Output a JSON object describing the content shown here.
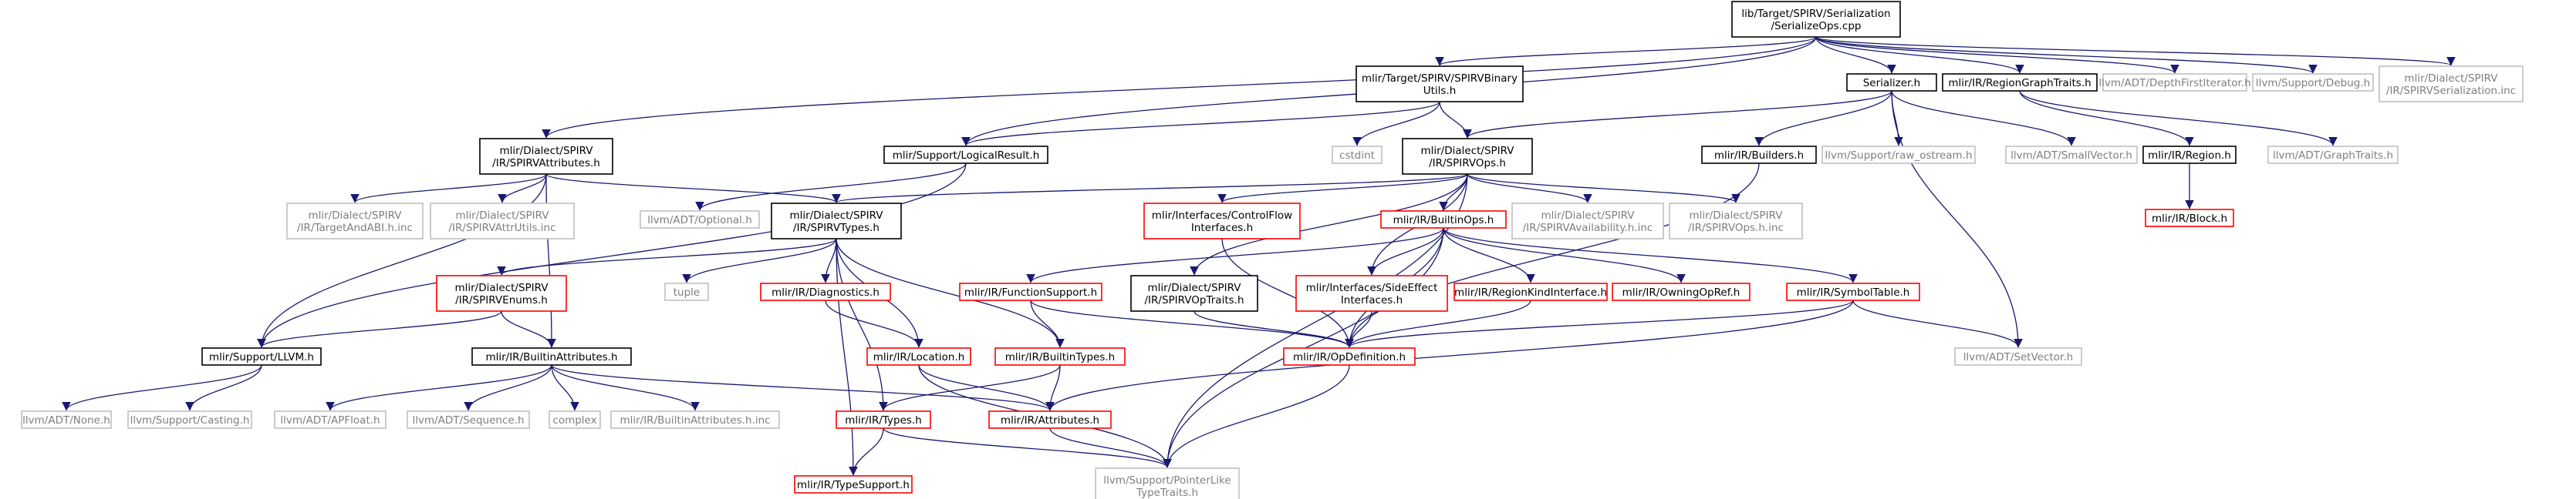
{
  "colors": {
    "root_fill": "#bfbfbf",
    "default_border": "#000000",
    "missing_border": "#bfbfbf",
    "missing_text": "#7f7f7f",
    "incomplete_border": "#ff0000",
    "edge": "#191970"
  },
  "nodes": [
    {
      "id": "root",
      "lines": [
        "lib/Target/SPIRV/Serialization",
        "/SerializeOps.cpp"
      ],
      "style": "root"
    },
    {
      "id": "binaryutils",
      "lines": [
        "mlir/Target/SPIRV/SPIRVBinary",
        "Utils.h"
      ],
      "style": "normal"
    },
    {
      "id": "serializer",
      "lines": [
        "Serializer.h"
      ],
      "style": "normal"
    },
    {
      "id": "regiongraphtraits",
      "lines": [
        "mlir/IR/RegionGraphTraits.h"
      ],
      "style": "normal"
    },
    {
      "id": "depthfirst",
      "lines": [
        "llvm/ADT/DepthFirstIterator.h"
      ],
      "style": "missing"
    },
    {
      "id": "debug",
      "lines": [
        "llvm/Support/Debug.h"
      ],
      "style": "missing"
    },
    {
      "id": "serialization_inc",
      "lines": [
        "mlir/Dialect/SPIRV",
        "/IR/SPIRVSerialization.inc"
      ],
      "style": "missing"
    },
    {
      "id": "attributes",
      "lines": [
        "mlir/Dialect/SPIRV",
        "/IR/SPIRVAttributes.h"
      ],
      "style": "normal"
    },
    {
      "id": "logicalresult",
      "lines": [
        "mlir/Support/LogicalResult.h"
      ],
      "style": "normal"
    },
    {
      "id": "cstdint",
      "lines": [
        "cstdint"
      ],
      "style": "missing"
    },
    {
      "id": "spirvops",
      "lines": [
        "mlir/Dialect/SPIRV",
        "/IR/SPIRVOps.h"
      ],
      "style": "normal"
    },
    {
      "id": "builders",
      "lines": [
        "mlir/IR/Builders.h"
      ],
      "style": "normal"
    },
    {
      "id": "raw_ostream",
      "lines": [
        "llvm/Support/raw_ostream.h"
      ],
      "style": "missing"
    },
    {
      "id": "smallvector",
      "lines": [
        "llvm/ADT/SmallVector.h"
      ],
      "style": "missing"
    },
    {
      "id": "region",
      "lines": [
        "mlir/IR/Region.h"
      ],
      "style": "normal"
    },
    {
      "id": "graphtraits",
      "lines": [
        "llvm/ADT/GraphTraits.h"
      ],
      "style": "missing"
    },
    {
      "id": "block",
      "lines": [
        "mlir/IR/Block.h"
      ],
      "style": "incomplete"
    },
    {
      "id": "targetandabi",
      "lines": [
        "mlir/Dialect/SPIRV",
        "/IR/TargetAndABI.h.inc"
      ],
      "style": "missing"
    },
    {
      "id": "attrutils",
      "lines": [
        "mlir/Dialect/SPIRV",
        "/IR/SPIRVAttrUtils.inc"
      ],
      "style": "missing"
    },
    {
      "id": "optional",
      "lines": [
        "llvm/ADT/Optional.h"
      ],
      "style": "missing"
    },
    {
      "id": "spirvtypes",
      "lines": [
        "mlir/Dialect/SPIRV",
        "/IR/SPIRVTypes.h"
      ],
      "style": "normal"
    },
    {
      "id": "controlflow",
      "lines": [
        "mlir/Interfaces/ControlFlow",
        "Interfaces.h"
      ],
      "style": "incomplete"
    },
    {
      "id": "builtinops",
      "lines": [
        "mlir/IR/BuiltinOps.h"
      ],
      "style": "incomplete"
    },
    {
      "id": "availability",
      "lines": [
        "mlir/Dialect/SPIRV",
        "/IR/SPIRVAvailability.h.inc"
      ],
      "style": "missing"
    },
    {
      "id": "spirvops_inc",
      "lines": [
        "mlir/Dialect/SPIRV",
        "/IR/SPIRVOps.h.inc"
      ],
      "style": "missing"
    },
    {
      "id": "spirvenums",
      "lines": [
        "mlir/Dialect/SPIRV",
        "/IR/SPIRVEnums.h"
      ],
      "style": "incomplete"
    },
    {
      "id": "tuple",
      "lines": [
        "tuple"
      ],
      "style": "missing"
    },
    {
      "id": "diagnostics",
      "lines": [
        "mlir/IR/Diagnostics.h"
      ],
      "style": "incomplete"
    },
    {
      "id": "functionsupport",
      "lines": [
        "mlir/IR/FunctionSupport.h"
      ],
      "style": "incomplete"
    },
    {
      "id": "spirvoptraits",
      "lines": [
        "mlir/Dialect/SPIRV",
        "/IR/SPIRVOpTraits.h"
      ],
      "style": "normal"
    },
    {
      "id": "sideeffect",
      "lines": [
        "mlir/Interfaces/SideEffect",
        "Interfaces.h"
      ],
      "style": "incomplete"
    },
    {
      "id": "regionkind",
      "lines": [
        "mlir/IR/RegionKindInterface.h"
      ],
      "style": "incomplete"
    },
    {
      "id": "owningopref",
      "lines": [
        "mlir/IR/OwningOpRef.h"
      ],
      "style": "incomplete"
    },
    {
      "id": "symboltable",
      "lines": [
        "mlir/IR/SymbolTable.h"
      ],
      "style": "incomplete"
    },
    {
      "id": "llvm",
      "lines": [
        "mlir/Support/LLVM.h"
      ],
      "style": "normal"
    },
    {
      "id": "builtinattributes",
      "lines": [
        "mlir/IR/BuiltinAttributes.h"
      ],
      "style": "normal"
    },
    {
      "id": "location",
      "lines": [
        "mlir/IR/Location.h"
      ],
      "style": "incomplete"
    },
    {
      "id": "builtintypes",
      "lines": [
        "mlir/IR/BuiltinTypes.h"
      ],
      "style": "incomplete"
    },
    {
      "id": "opdefinition",
      "lines": [
        "mlir/IR/OpDefinition.h"
      ],
      "style": "incomplete"
    },
    {
      "id": "setvector",
      "lines": [
        "llvm/ADT/SetVector.h"
      ],
      "style": "missing"
    },
    {
      "id": "none",
      "lines": [
        "llvm/ADT/None.h"
      ],
      "style": "missing"
    },
    {
      "id": "casting",
      "lines": [
        "llvm/Support/Casting.h"
      ],
      "style": "missing"
    },
    {
      "id": "apfloat",
      "lines": [
        "llvm/ADT/APFloat.h"
      ],
      "style": "missing"
    },
    {
      "id": "sequence",
      "lines": [
        "llvm/ADT/Sequence.h"
      ],
      "style": "missing"
    },
    {
      "id": "complex",
      "lines": [
        "complex"
      ],
      "style": "missing"
    },
    {
      "id": "builtinattributes_inc",
      "lines": [
        "mlir/IR/BuiltinAttributes.h.inc"
      ],
      "style": "missing"
    },
    {
      "id": "types",
      "lines": [
        "mlir/IR/Types.h"
      ],
      "style": "incomplete"
    },
    {
      "id": "irattributes",
      "lines": [
        "mlir/IR/Attributes.h"
      ],
      "style": "incomplete"
    },
    {
      "id": "typesupport",
      "lines": [
        "mlir/IR/TypeSupport.h"
      ],
      "style": "incomplete"
    },
    {
      "id": "pointerlike",
      "lines": [
        "llvm/Support/PointerLike",
        "TypeTraits.h"
      ],
      "style": "missing"
    }
  ],
  "edges": [
    [
      "root",
      "binaryutils"
    ],
    [
      "root",
      "serializer"
    ],
    [
      "root",
      "regiongraphtraits"
    ],
    [
      "root",
      "depthfirst"
    ],
    [
      "root",
      "debug"
    ],
    [
      "root",
      "serialization_inc"
    ],
    [
      "root",
      "attributes"
    ],
    [
      "root",
      "logicalresult"
    ],
    [
      "binaryutils",
      "logicalresult"
    ],
    [
      "binaryutils",
      "cstdint"
    ],
    [
      "binaryutils",
      "spirvops"
    ],
    [
      "serializer",
      "spirvops"
    ],
    [
      "serializer",
      "builders"
    ],
    [
      "serializer",
      "raw_ostream"
    ],
    [
      "serializer",
      "smallvector"
    ],
    [
      "serializer",
      "setvector"
    ],
    [
      "regiongraphtraits",
      "region"
    ],
    [
      "regiongraphtraits",
      "graphtraits"
    ],
    [
      "region",
      "block"
    ],
    [
      "attributes",
      "targetandabi"
    ],
    [
      "attributes",
      "attrutils"
    ],
    [
      "attributes",
      "spirvtypes"
    ],
    [
      "attributes",
      "builtinattributes"
    ],
    [
      "attributes",
      "llvm"
    ],
    [
      "logicalresult",
      "optional"
    ],
    [
      "logicalresult",
      "llvm"
    ],
    [
      "spirvops",
      "spirvtypes"
    ],
    [
      "spirvops",
      "controlflow"
    ],
    [
      "spirvops",
      "builtinops"
    ],
    [
      "spirvops",
      "availability"
    ],
    [
      "spirvops",
      "spirvops_inc"
    ],
    [
      "spirvops",
      "spirvoptraits"
    ],
    [
      "spirvops",
      "sideeffect"
    ],
    [
      "spirvops",
      "pointerlike"
    ],
    [
      "builders",
      "opdefinition"
    ],
    [
      "spirvtypes",
      "spirvenums"
    ],
    [
      "spirvtypes",
      "tuple"
    ],
    [
      "spirvtypes",
      "diagnostics"
    ],
    [
      "spirvtypes",
      "location"
    ],
    [
      "spirvtypes",
      "builtintypes"
    ],
    [
      "spirvtypes",
      "types"
    ],
    [
      "spirvtypes",
      "typesupport"
    ],
    [
      "spirvenums",
      "llvm"
    ],
    [
      "spirvenums",
      "builtinattributes"
    ],
    [
      "controlflow",
      "opdefinition"
    ],
    [
      "builtinops",
      "functionsupport"
    ],
    [
      "builtinops",
      "sideeffect"
    ],
    [
      "builtinops",
      "regionkind"
    ],
    [
      "builtinops",
      "owningopref"
    ],
    [
      "builtinops",
      "symboltable"
    ],
    [
      "builtinops",
      "opdefinition"
    ],
    [
      "builtinops",
      "pointerlike"
    ],
    [
      "functionsupport",
      "opdefinition"
    ],
    [
      "functionsupport",
      "builtintypes"
    ],
    [
      "spirvoptraits",
      "opdefinition"
    ],
    [
      "sideeffect",
      "opdefinition"
    ],
    [
      "regionkind",
      "opdefinition"
    ],
    [
      "symboltable",
      "opdefinition"
    ],
    [
      "symboltable",
      "irattributes"
    ],
    [
      "symboltable",
      "setvector"
    ],
    [
      "diagnostics",
      "location"
    ],
    [
      "location",
      "irattributes"
    ],
    [
      "location",
      "pointerlike"
    ],
    [
      "builtintypes",
      "types"
    ],
    [
      "builtintypes",
      "irattributes"
    ],
    [
      "llvm",
      "none"
    ],
    [
      "llvm",
      "casting"
    ],
    [
      "builtinattributes",
      "apfloat"
    ],
    [
      "builtinattributes",
      "sequence"
    ],
    [
      "builtinattributes",
      "complex"
    ],
    [
      "builtinattributes",
      "builtinattributes_inc"
    ],
    [
      "builtinattributes",
      "irattributes"
    ],
    [
      "opdefinition",
      "pointerlike"
    ],
    [
      "types",
      "typesupport"
    ],
    [
      "types",
      "pointerlike"
    ],
    [
      "irattributes",
      "pointerlike"
    ]
  ]
}
